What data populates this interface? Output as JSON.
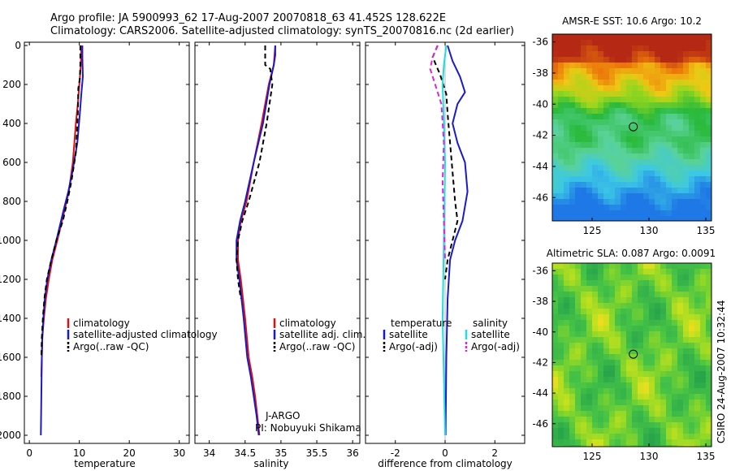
{
  "figure": {
    "title_line1": "Argo profile: JA 5900993_62 17-Aug-2007 20070818_63 41.452S 128.622E",
    "title_line2": "Climatology: CARS2006. Satellite-adjusted climatology: synTS_20070816.nc (2d earlier)",
    "side_note": "CSIRO 24-Aug-2007 10:32:44",
    "pi_label1": "J-ARGO",
    "pi_label2": "PI: Nobuyuki Shikama"
  },
  "colors": {
    "climatology": "#dd1111",
    "satellite": "#1a1acc",
    "argo": "#000000",
    "cyan": "#22dddd",
    "magenta": "#dd22dd"
  },
  "chart_data": [
    {
      "type": "line",
      "name": "temperature-profile",
      "xlabel": "temperature",
      "ylabel": "",
      "xlim": [
        -1,
        32
      ],
      "ylim": [
        2050,
        0
      ],
      "yreversed": true,
      "xticks": [
        "0",
        "10",
        "20",
        "30"
      ],
      "xtick_values": [
        0,
        10,
        20,
        30
      ],
      "yticks": [
        "0",
        "200",
        "400",
        "600",
        "800",
        "1000",
        "1200",
        "1400",
        "1600",
        "1800",
        "2000"
      ],
      "ytick_values": [
        0,
        200,
        400,
        600,
        800,
        1000,
        1200,
        1400,
        1600,
        1800,
        2000
      ],
      "legend": [
        "climatology",
        "satellite-adjusted climatology",
        "Argo(..raw -QC)"
      ],
      "series": [
        {
          "name": "climatology",
          "style": "solid",
          "color_key": "climatology",
          "x": [
            10.4,
            10.3,
            10.0,
            9.7,
            9.3,
            8.7,
            7.9,
            7.0,
            5.6,
            4.6,
            3.9,
            3.3,
            2.9,
            2.6,
            2.5,
            2.4
          ],
          "y": [
            0,
            100,
            200,
            300,
            400,
            600,
            750,
            850,
            1000,
            1100,
            1200,
            1300,
            1400,
            1500,
            1600,
            1700
          ]
        },
        {
          "name": "satellite-adjusted climatology",
          "style": "solid",
          "color_key": "satellite",
          "x": [
            10.6,
            10.6,
            10.7,
            10.4,
            10.1,
            9.6,
            8.6,
            7.8,
            6.8,
            5.4,
            4.4,
            3.6,
            3.1,
            2.8,
            2.6,
            2.5,
            2.4,
            2.3
          ],
          "y": [
            0,
            60,
            160,
            250,
            350,
            500,
            650,
            750,
            850,
            1000,
            1100,
            1200,
            1300,
            1400,
            1500,
            1600,
            1800,
            2000
          ]
        },
        {
          "name": "Argo(..raw -QC)",
          "style": "dashed",
          "color_key": "argo",
          "x": [
            10.2,
            10.2,
            10.1,
            9.8,
            9.7,
            9.3,
            8.4,
            7.6,
            6.7,
            5.4,
            4.4,
            3.5,
            3.0,
            2.7,
            2.5,
            2.4
          ],
          "y": [
            0,
            100,
            170,
            220,
            350,
            550,
            700,
            800,
            900,
            1000,
            1100,
            1200,
            1300,
            1400,
            1500,
            1600
          ]
        }
      ]
    },
    {
      "type": "line",
      "name": "salinity-profile",
      "xlabel": "salinity",
      "ylabel": "",
      "xlim": [
        33.8,
        36.1
      ],
      "ylim": [
        2050,
        0
      ],
      "yreversed": true,
      "xticks": [
        "34",
        "34.5",
        "35",
        "35.5",
        "36"
      ],
      "xtick_values": [
        34,
        34.5,
        35,
        35.5,
        36
      ],
      "legend": [
        "climatology",
        "satellite adj. clim.",
        "Argo(..raw -QC)"
      ],
      "series": [
        {
          "name": "climatology",
          "style": "solid",
          "color_key": "climatology",
          "x": [
            34.92,
            34.91,
            34.9,
            34.83,
            34.73,
            34.62,
            34.52,
            34.44,
            34.4,
            34.4,
            34.44,
            34.5,
            34.55,
            34.6,
            34.64,
            34.67,
            34.7
          ],
          "y": [
            0,
            50,
            100,
            200,
            400,
            600,
            800,
            900,
            1000,
            1100,
            1200,
            1400,
            1600,
            1700,
            1800,
            1900,
            2000
          ]
        },
        {
          "name": "satellite adj. clim.",
          "style": "solid",
          "color_key": "satellite",
          "x": [
            34.92,
            34.92,
            34.9,
            34.84,
            34.75,
            34.62,
            34.5,
            34.43,
            34.38,
            34.38,
            34.42,
            34.48,
            34.53,
            34.58,
            34.62,
            34.66,
            34.69
          ],
          "y": [
            0,
            50,
            100,
            200,
            400,
            600,
            800,
            900,
            1000,
            1100,
            1200,
            1400,
            1600,
            1700,
            1800,
            1900,
            2000
          ]
        },
        {
          "name": "Argo(..raw -QC)",
          "style": "dashed",
          "color_key": "argo",
          "x": [
            34.78,
            34.78,
            34.85,
            34.88,
            34.8,
            34.7,
            34.55,
            34.46,
            34.4,
            34.38,
            34.4,
            34.44
          ],
          "y": [
            0,
            100,
            120,
            200,
            400,
            600,
            800,
            900,
            1000,
            1100,
            1200,
            1300
          ]
        }
      ]
    },
    {
      "type": "line",
      "name": "difference-profile",
      "xlabel": "difference from climatology",
      "ylabel": "",
      "xlim": [
        -3.2,
        3.2
      ],
      "ylim": [
        2050,
        0
      ],
      "yreversed": true,
      "xticks": [
        "-2",
        "0",
        "2"
      ],
      "xtick_values": [
        -2,
        0,
        2
      ],
      "legend": [
        "temperature",
        "satellite",
        "Argo(-adj)",
        "salinity",
        "satellite",
        "Argo(-adj)"
      ],
      "series": [
        {
          "name": "temperature satellite",
          "style": "solid",
          "color_key": "satellite",
          "x": [
            0.1,
            0.3,
            0.6,
            0.8,
            0.5,
            0.3,
            0.5,
            0.8,
            0.9,
            0.7,
            0.4,
            0.2,
            0.1,
            0.05,
            0.02
          ],
          "y": [
            0,
            80,
            160,
            240,
            300,
            400,
            500,
            600,
            750,
            900,
            1000,
            1100,
            1300,
            1600,
            2000
          ]
        },
        {
          "name": "temperature Argo(-adj)",
          "style": "dashed",
          "color_key": "argo",
          "x": [
            -0.3,
            -0.5,
            -0.2,
            0.05,
            0.1,
            0.2,
            0.3,
            0.4,
            0.5,
            0.3,
            0.1,
            0.0
          ],
          "y": [
            0,
            60,
            150,
            250,
            350,
            500,
            650,
            800,
            900,
            1000,
            1100,
            1200
          ]
        },
        {
          "name": "salinity satellite",
          "style": "solid",
          "color_key": "cyan",
          "x": [
            0.05,
            -0.05,
            -0.1,
            -0.05,
            0.0,
            -0.02,
            -0.05,
            -0.1,
            -0.05,
            0.0
          ],
          "y": [
            0,
            100,
            200,
            400,
            600,
            800,
            1000,
            1400,
            1700,
            2000
          ]
        },
        {
          "name": "salinity Argo(-adj)",
          "style": "dashed",
          "color_key": "magenta",
          "x": [
            -0.3,
            -0.5,
            -0.6,
            -0.4,
            -0.15,
            -0.05,
            -0.1,
            -0.05,
            0.0
          ],
          "y": [
            0,
            60,
            120,
            200,
            300,
            500,
            700,
            900,
            1100
          ]
        }
      ]
    },
    {
      "type": "heatmap",
      "name": "sst-map",
      "title": "AMSR-E SST: 10.6 Argo: 10.2",
      "xlim": [
        121.5,
        135.5
      ],
      "ylim": [
        -47.5,
        -35.5
      ],
      "xticks": [
        "125",
        "130",
        "135"
      ],
      "xtick_values": [
        125,
        130,
        135
      ],
      "yticks": [
        "-36",
        "-38",
        "-40",
        "-42",
        "-44",
        "-46"
      ],
      "ytick_values": [
        -36,
        -38,
        -40,
        -42,
        -44,
        -46
      ],
      "marker": {
        "lon": 128.622,
        "lat": -41.452
      }
    },
    {
      "type": "heatmap",
      "name": "sla-map",
      "title": "Altimetric SLA: 0.087 Argo: 0.0091",
      "xlim": [
        121.5,
        135.5
      ],
      "ylim": [
        -47.5,
        -35.5
      ],
      "xticks": [
        "125",
        "130",
        "135"
      ],
      "xtick_values": [
        125,
        130,
        135
      ],
      "yticks": [
        "-36",
        "-38",
        "-40",
        "-42",
        "-44",
        "-46"
      ],
      "ytick_values": [
        -36,
        -38,
        -40,
        -42,
        -44,
        -46
      ],
      "marker": {
        "lon": 128.622,
        "lat": -41.452
      }
    }
  ]
}
